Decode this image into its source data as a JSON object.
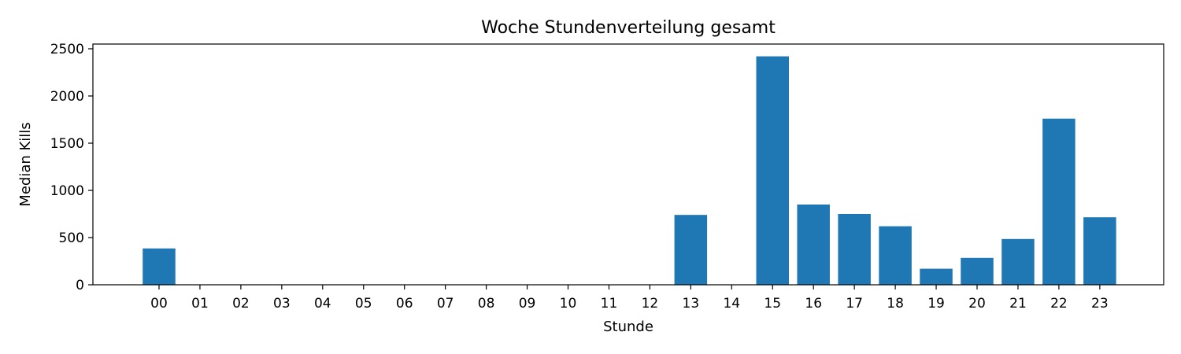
{
  "chart_data": {
    "type": "bar",
    "title": "Woche Stundenverteilung gesamt",
    "xlabel": "Stunde",
    "ylabel": "Median Kills",
    "categories": [
      "00",
      "01",
      "02",
      "03",
      "04",
      "05",
      "06",
      "07",
      "08",
      "09",
      "10",
      "11",
      "12",
      "13",
      "14",
      "15",
      "16",
      "17",
      "18",
      "19",
      "20",
      "21",
      "22",
      "23"
    ],
    "values": [
      385,
      0,
      0,
      0,
      0,
      0,
      0,
      0,
      0,
      0,
      0,
      0,
      0,
      740,
      0,
      2420,
      850,
      750,
      620,
      170,
      285,
      485,
      1760,
      715
    ],
    "ylim": [
      0,
      2550
    ],
    "yticks": [
      0,
      500,
      1000,
      1500,
      2000,
      2500
    ],
    "grid": false,
    "bar_color": "#1f77b4"
  }
}
